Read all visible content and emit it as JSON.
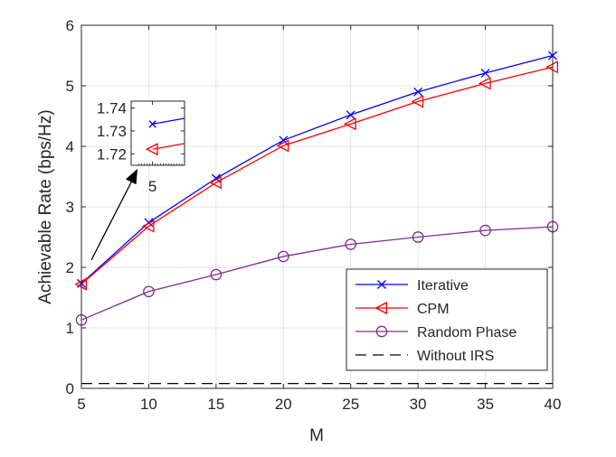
{
  "chart_data": {
    "type": "line",
    "xlabel": "M",
    "ylabel": "Achievable Rate (bps/Hz)",
    "xlim": [
      5,
      40
    ],
    "ylim": [
      0,
      6
    ],
    "xticks": [
      5,
      10,
      15,
      20,
      25,
      30,
      35,
      40
    ],
    "yticks": [
      0,
      1,
      2,
      3,
      4,
      5,
      6
    ],
    "grid": true,
    "legend_position": "bottom-right",
    "x": [
      5,
      10,
      15,
      20,
      25,
      30,
      35,
      40
    ],
    "series": [
      {
        "name": "Iterative",
        "color": "#0000ff",
        "marker": "x",
        "dash": "solid",
        "values": [
          1.733,
          2.74,
          3.47,
          4.1,
          4.52,
          4.9,
          5.21,
          5.5
        ]
      },
      {
        "name": "CPM",
        "color": "#ff0000",
        "marker": "triangle-left",
        "dash": "solid",
        "values": [
          1.722,
          2.68,
          3.4,
          4.01,
          4.37,
          4.74,
          5.04,
          5.31
        ]
      },
      {
        "name": "Random Phase",
        "color": "#7e2f8e",
        "marker": "circle",
        "dash": "solid",
        "values": [
          1.13,
          1.6,
          1.88,
          2.18,
          2.38,
          2.5,
          2.61,
          2.67
        ]
      },
      {
        "name": "Without IRS",
        "color": "#000000",
        "marker": "none",
        "dash": "dashed",
        "values": [
          0.08,
          0.08,
          0.08,
          0.08,
          0.08,
          0.08,
          0.08,
          0.08
        ]
      }
    ],
    "inset": {
      "xlim": [
        4.6,
        5.6
      ],
      "ylim": [
        1.715,
        1.743
      ],
      "yticks": [
        "1.74",
        "1.73",
        "1.72"
      ],
      "xticks": [
        "5"
      ],
      "iterative_line": [
        [
          5.0,
          1.733
        ],
        [
          5.6,
          1.7355
        ]
      ],
      "cpm_line": [
        [
          5.0,
          1.722
        ],
        [
          5.6,
          1.7245
        ]
      ]
    }
  }
}
